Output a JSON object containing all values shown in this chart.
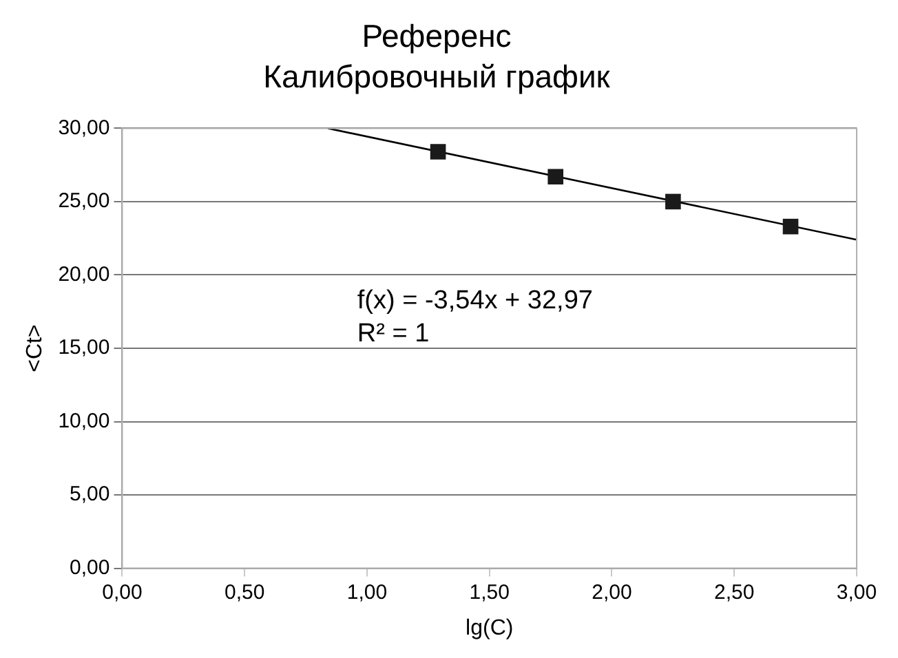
{
  "chart_data": {
    "type": "scatter",
    "title": "Референс",
    "subtitle": "Калибровочный график",
    "xlabel": "lg(C)",
    "ylabel": "<Ct>",
    "series": [
      {
        "color": "#1a1a1a",
        "marker": "square",
        "x": [
          1.29,
          1.77,
          2.25,
          2.73
        ],
        "values": [
          28.4,
          26.7,
          25.0,
          23.3
        ]
      },
      {
        "type": "line",
        "color": "#000000",
        "marker": "none",
        "line_style": "solid",
        "x": [
          0.84,
          3.0
        ],
        "values": [
          30.0,
          22.4
        ]
      }
    ],
    "annotations": [
      "f(x) = -3,54x + 32,97",
      "R² = 1"
    ],
    "xlim": [
      0,
      3
    ],
    "ylim": [
      0,
      30
    ],
    "xticks": [
      {
        "value": 0,
        "label": "0,00"
      },
      {
        "value": 0.5,
        "label": "0,50"
      },
      {
        "value": 1,
        "label": "1,00"
      },
      {
        "value": 1.5,
        "label": "1,50"
      },
      {
        "value": 2,
        "label": "2,00"
      },
      {
        "value": 2.5,
        "label": "2,50"
      },
      {
        "value": 3,
        "label": "3,00"
      }
    ],
    "yticks": [
      {
        "value": 0,
        "label": "0,00"
      },
      {
        "value": 5,
        "label": "5,00"
      },
      {
        "value": 10,
        "label": "10,00"
      },
      {
        "value": 15,
        "label": "15,00"
      },
      {
        "value": 20,
        "label": "20,00"
      },
      {
        "value": 25,
        "label": "25,00"
      },
      {
        "value": 30,
        "label": "30,00"
      }
    ],
    "grid": "y",
    "legend": false
  }
}
